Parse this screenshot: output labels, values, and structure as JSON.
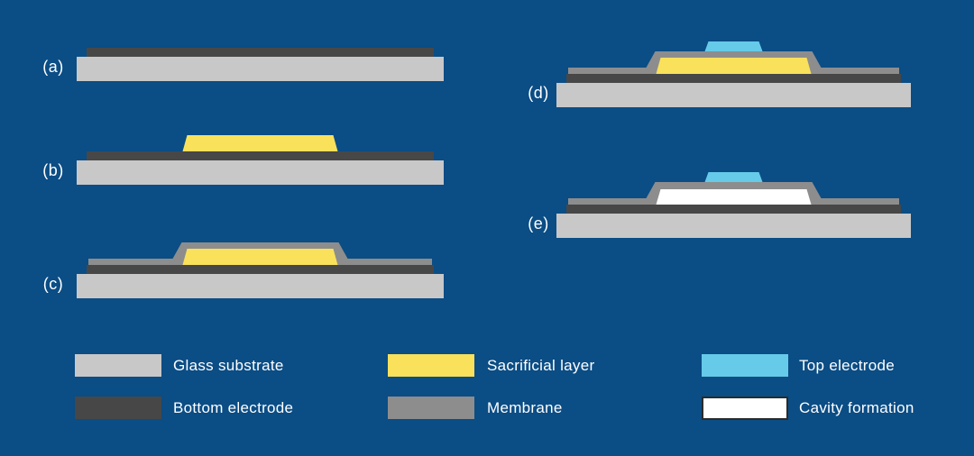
{
  "figure": {
    "background_color": "#0b4d85",
    "text_color": "#ffffff"
  },
  "colors": {
    "glass_substrate": "#c8c8c8",
    "bottom_electrode": "#474747",
    "sacrificial_layer": "#f9e15b",
    "membrane": "#8d8d8d",
    "top_electrode": "#65cbe9",
    "cavity_formation": "#ffffff",
    "cavity_swatch_border": "#2b2b2b"
  },
  "panels": [
    {
      "id": "a",
      "label": "(a)",
      "layers": [
        "glass_substrate",
        "bottom_electrode"
      ]
    },
    {
      "id": "b",
      "label": "(b)",
      "layers": [
        "glass_substrate",
        "bottom_electrode",
        "sacrificial_layer"
      ]
    },
    {
      "id": "c",
      "label": "(c)",
      "layers": [
        "glass_substrate",
        "bottom_electrode",
        "membrane",
        "sacrificial_layer"
      ]
    },
    {
      "id": "d",
      "label": "(d)",
      "layers": [
        "glass_substrate",
        "bottom_electrode",
        "membrane",
        "sacrificial_layer",
        "top_electrode"
      ]
    },
    {
      "id": "e",
      "label": "(e)",
      "layers": [
        "glass_substrate",
        "bottom_electrode",
        "membrane",
        "cavity_formation",
        "top_electrode"
      ]
    }
  ],
  "legend": {
    "columns": [
      {
        "items": [
          {
            "key": "glass_substrate",
            "label": "Glass substrate"
          },
          {
            "key": "bottom_electrode",
            "label": "Bottom electrode"
          }
        ]
      },
      {
        "items": [
          {
            "key": "sacrificial_layer",
            "label": "Sacrificial layer"
          },
          {
            "key": "membrane",
            "label": "Membrane"
          }
        ]
      },
      {
        "items": [
          {
            "key": "top_electrode",
            "label": "Top electrode"
          },
          {
            "key": "cavity_formation",
            "label": "Cavity formation"
          }
        ]
      }
    ]
  }
}
